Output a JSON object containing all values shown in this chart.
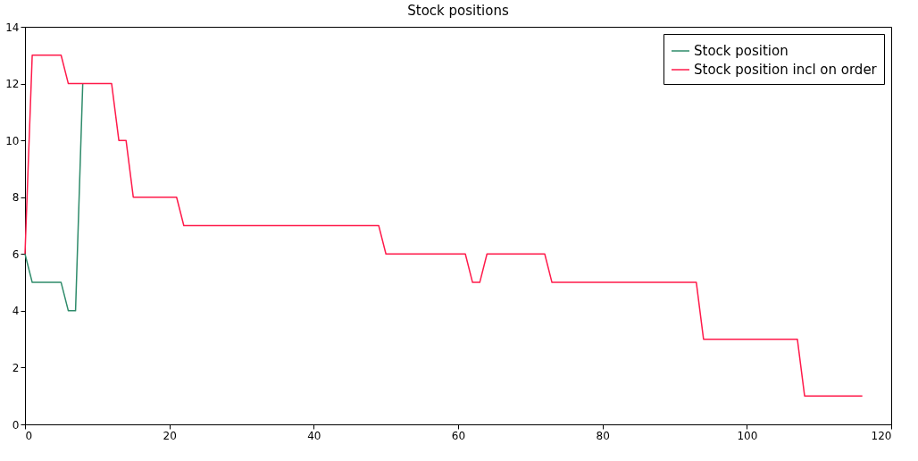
{
  "chart_data": {
    "type": "line",
    "title": "Stock positions",
    "series": [
      {
        "name": "Stock position",
        "color": "#2e8b6a",
        "x": [
          0,
          1,
          5,
          6,
          7,
          8
        ],
        "values": [
          6,
          5,
          5,
          4,
          4,
          12
        ]
      },
      {
        "name": "Stock position incl on order",
        "color": "#ff1a4a",
        "x": [
          0,
          1,
          5,
          6,
          12,
          13,
          14,
          15,
          21,
          22,
          49,
          50,
          61,
          62,
          63,
          64,
          72,
          73,
          93,
          94,
          107,
          108,
          116
        ],
        "values": [
          6,
          13,
          13,
          12,
          12,
          10,
          10,
          8,
          8,
          7,
          7,
          6,
          6,
          5,
          5,
          6,
          6,
          5,
          5,
          3,
          3,
          1,
          1
        ]
      }
    ],
    "xlim": [
      0,
      120
    ],
    "xticks": [
      0,
      20,
      40,
      60,
      80,
      100,
      120
    ],
    "ylim": [
      0,
      14
    ],
    "yticks": [
      0,
      2,
      4,
      6,
      8,
      10,
      12,
      14
    ],
    "grid": false,
    "legend": "top right",
    "marker": "none",
    "line_style": "solid"
  }
}
